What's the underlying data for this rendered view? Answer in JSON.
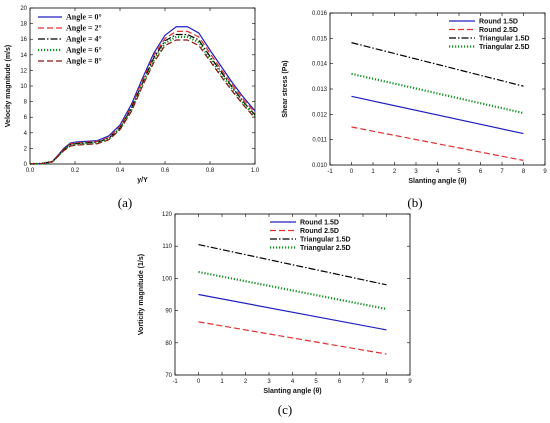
{
  "chart_data": [
    {
      "id": "a",
      "type": "line",
      "panel_label": "(a)",
      "xlabel": "y/Y",
      "ylabel": "Velocity magnitude (m/s)",
      "xlim": [
        0.0,
        1.0
      ],
      "ylim": [
        0,
        20
      ],
      "xticks": [
        0.0,
        0.2,
        0.4,
        0.6,
        0.8,
        1.0
      ],
      "xtick_labels": [
        "0.0",
        "0.2",
        "0.4",
        "0.6",
        "0.8",
        "1.0"
      ],
      "yticks": [
        0,
        2,
        4,
        6,
        8,
        10,
        12,
        14,
        16,
        18,
        20
      ],
      "ytick_labels": [
        "0",
        "2",
        "4",
        "6",
        "8",
        "10",
        "12",
        "14",
        "16",
        "18",
        "20"
      ],
      "legend_position": "top-left",
      "x": [
        0.0,
        0.05,
        0.1,
        0.15,
        0.18,
        0.2,
        0.25,
        0.3,
        0.35,
        0.4,
        0.45,
        0.5,
        0.55,
        0.6,
        0.65,
        0.7,
        0.75,
        0.8,
        0.85,
        0.9,
        0.95,
        1.0
      ],
      "series": [
        {
          "name": "Angle = 0°",
          "color": "#2020c0",
          "dash": "solid",
          "values": [
            0.0,
            0.05,
            0.3,
            2.0,
            2.7,
            2.8,
            2.9,
            3.0,
            3.6,
            5.0,
            7.6,
            11.0,
            14.2,
            16.5,
            17.6,
            17.6,
            16.8,
            14.6,
            12.5,
            10.4,
            8.5,
            6.8
          ]
        },
        {
          "name": "Angle = 2°",
          "color": "#e03030",
          "dash": "longdash",
          "values": [
            0.0,
            0.05,
            0.3,
            1.9,
            2.6,
            2.7,
            2.8,
            2.9,
            3.4,
            4.8,
            7.3,
            10.7,
            13.9,
            16.1,
            17.0,
            17.0,
            16.3,
            14.2,
            12.1,
            10.1,
            8.2,
            6.6
          ]
        },
        {
          "name": "Angle = 4°",
          "color": "#000000",
          "dash": "dashdot",
          "values": [
            0.0,
            0.05,
            0.3,
            1.8,
            2.5,
            2.6,
            2.7,
            2.8,
            3.3,
            4.6,
            7.1,
            10.4,
            13.6,
            15.8,
            16.6,
            16.6,
            15.9,
            13.8,
            11.8,
            9.8,
            7.9,
            6.3
          ]
        },
        {
          "name": "Angle = 6°",
          "color": "#109020",
          "dash": "dotted",
          "values": [
            0.0,
            0.05,
            0.3,
            1.8,
            2.4,
            2.5,
            2.6,
            2.7,
            3.2,
            4.5,
            6.9,
            10.2,
            13.3,
            15.5,
            16.3,
            16.3,
            15.6,
            13.5,
            11.5,
            9.6,
            7.7,
            6.1
          ]
        },
        {
          "name": "Angle = 8°",
          "color": "#8a1515",
          "dash": "longdash",
          "values": [
            0.0,
            0.05,
            0.3,
            1.7,
            2.3,
            2.4,
            2.5,
            2.6,
            3.1,
            4.4,
            6.7,
            10.0,
            13.0,
            15.2,
            15.9,
            15.9,
            15.2,
            13.2,
            11.2,
            9.3,
            7.5,
            5.9
          ]
        }
      ]
    },
    {
      "id": "b",
      "type": "line",
      "panel_label": "(b)",
      "xlabel": "Slanting angle (θ)",
      "ylabel": "Shear stress (Pa)",
      "xlim": [
        -1,
        9
      ],
      "ylim": [
        0.01,
        0.016
      ],
      "xticks": [
        -1,
        0,
        1,
        2,
        3,
        4,
        5,
        6,
        7,
        8,
        9
      ],
      "xtick_labels": [
        "-1",
        "0",
        "1",
        "2",
        "3",
        "4",
        "5",
        "6",
        "7",
        "8",
        "9"
      ],
      "yticks": [
        0.01,
        0.011,
        0.012,
        0.013,
        0.014,
        0.015,
        0.016
      ],
      "ytick_labels": [
        "0.010",
        "0.011",
        "0.012",
        "0.013",
        "0.014",
        "0.015",
        "0.016"
      ],
      "legend_position": "top-right",
      "x": [
        0,
        8
      ],
      "series": [
        {
          "name": "Round 1.5D",
          "color": "#2020c0",
          "dash": "solid",
          "values": [
            0.01271,
            0.01124
          ]
        },
        {
          "name": "Round 2.5D",
          "color": "#e03030",
          "dash": "longdash",
          "values": [
            0.0115,
            0.01018
          ]
        },
        {
          "name": "Triangular 1.5D",
          "color": "#000000",
          "dash": "dashdot",
          "values": [
            0.01483,
            0.01311
          ]
        },
        {
          "name": "Triangular 2.5D",
          "color": "#109020",
          "dash": "dotted",
          "values": [
            0.0136,
            0.01205
          ]
        }
      ]
    },
    {
      "id": "c",
      "type": "line",
      "panel_label": "(c)",
      "xlabel": "Slanting angle (θ)",
      "ylabel": "Vorticity magnitude (1/s)",
      "xlim": [
        -1,
        9
      ],
      "ylim": [
        70,
        120
      ],
      "xticks": [
        -1,
        0,
        1,
        2,
        3,
        4,
        5,
        6,
        7,
        8,
        9
      ],
      "xtick_labels": [
        "-1",
        "0",
        "1",
        "2",
        "3",
        "4",
        "5",
        "6",
        "7",
        "8",
        "9"
      ],
      "yticks": [
        70,
        80,
        90,
        100,
        110,
        120
      ],
      "ytick_labels": [
        "70",
        "80",
        "90",
        "100",
        "110",
        "120"
      ],
      "legend_position": "top-right",
      "x": [
        0,
        8
      ],
      "series": [
        {
          "name": "Round 1.5D",
          "color": "#2020c0",
          "dash": "solid",
          "values": [
            95.0,
            84.0
          ]
        },
        {
          "name": "Round 2.5D",
          "color": "#e03030",
          "dash": "longdash",
          "values": [
            86.5,
            76.5
          ]
        },
        {
          "name": "Triangular 1.5D",
          "color": "#000000",
          "dash": "dashdot",
          "values": [
            110.5,
            98.0
          ]
        },
        {
          "name": "Triangular 2.5D",
          "color": "#109020",
          "dash": "dotted",
          "values": [
            102.0,
            90.5
          ]
        }
      ]
    }
  ]
}
